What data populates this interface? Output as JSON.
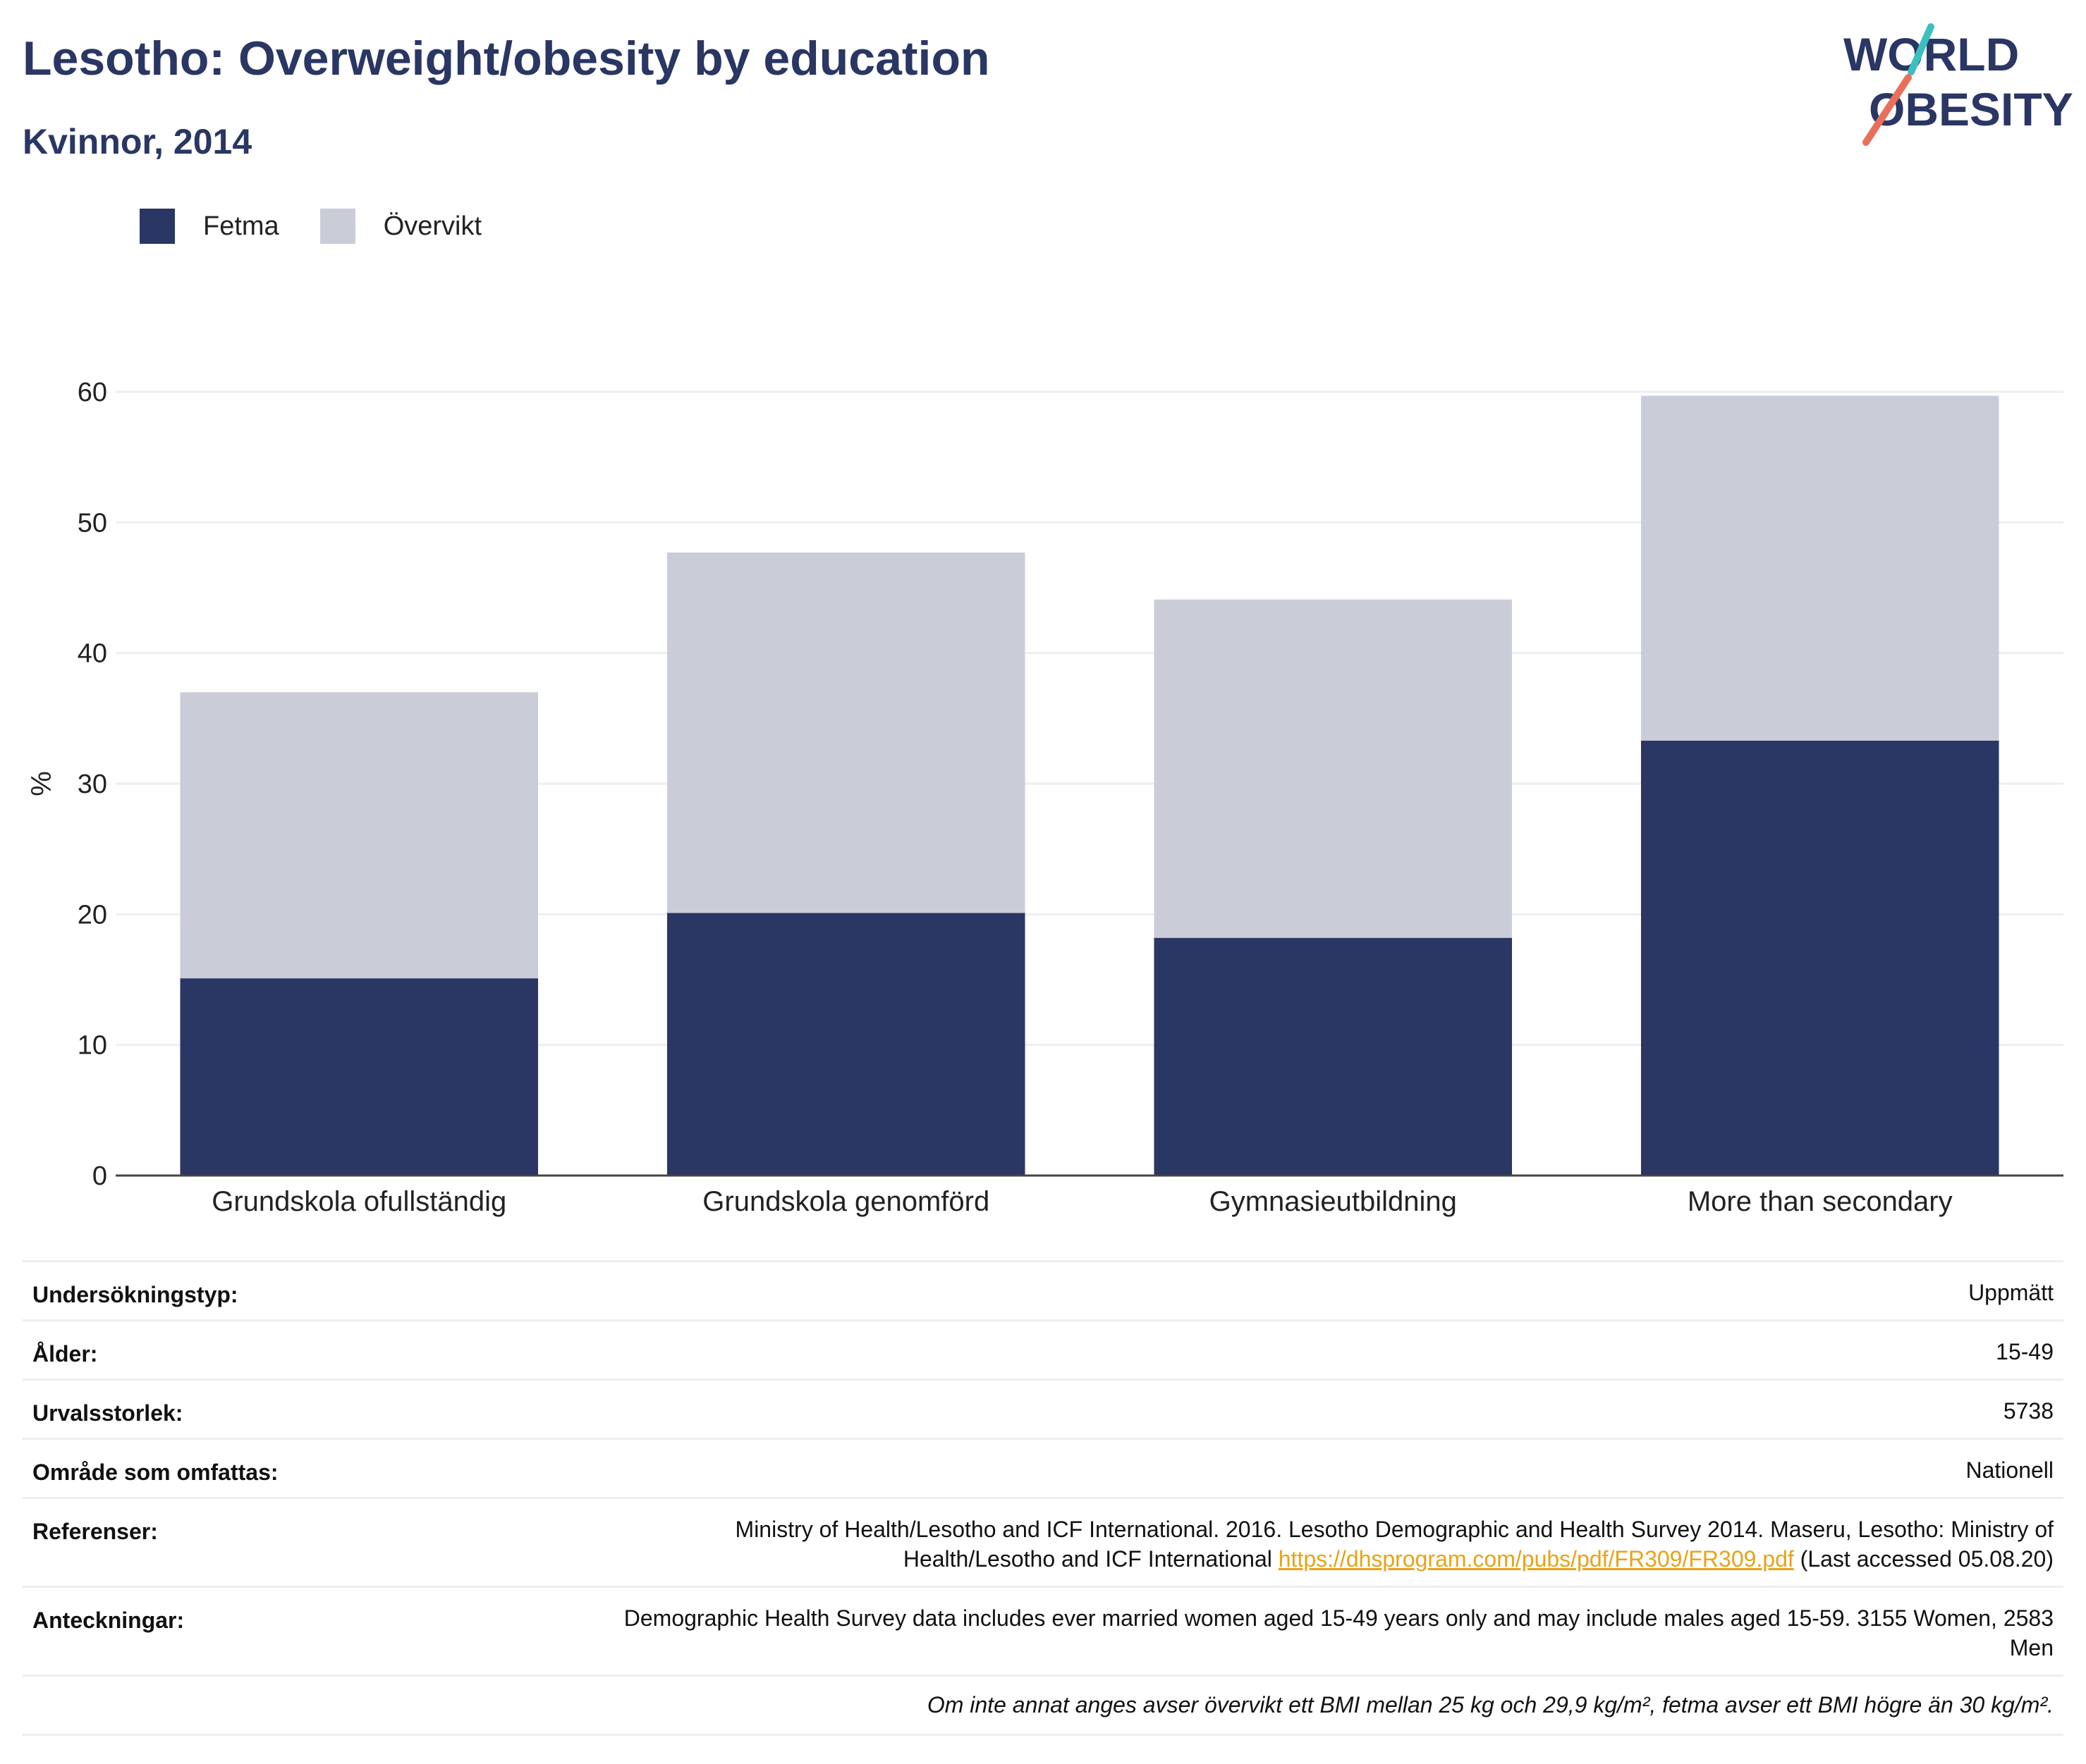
{
  "header": {
    "title": "Lesotho: Overweight/obesity by education",
    "subtitle": "Kvinnor, 2014",
    "logo_line1": "WORLD",
    "logo_line2": "OBESITY"
  },
  "legend": [
    {
      "label": "Fetma",
      "color": "#2a3663"
    },
    {
      "label": "Övervikt",
      "color": "#cacdd8"
    }
  ],
  "chart_data": {
    "type": "bar",
    "stacked": true,
    "categories": [
      "Grundskola ofullständig",
      "Grundskola genomförd",
      "Gymnasieutbildning",
      "More than secondary"
    ],
    "series": [
      {
        "name": "Fetma",
        "color": "#2a3663",
        "values": [
          15.1,
          20.1,
          18.2,
          33.3
        ]
      },
      {
        "name": "Övervikt",
        "color": "#cacdd8",
        "values": [
          21.9,
          27.6,
          25.9,
          26.4
        ]
      }
    ],
    "ylabel": "%",
    "ylim": [
      0,
      60
    ],
    "yticks": [
      0,
      10,
      20,
      30,
      40,
      50,
      60
    ],
    "grid": true,
    "legend_position": "top-left"
  },
  "info": {
    "rows": [
      {
        "label": "Undersökningstyp:",
        "value": "Uppmätt"
      },
      {
        "label": "Ålder:",
        "value": "15-49"
      },
      {
        "label": "Urvalsstorlek:",
        "value": "5738"
      },
      {
        "label": "Område som omfattas:",
        "value": "Nationell"
      }
    ],
    "references_label": "Referenser:",
    "references_text": "Ministry of Health/Lesotho and ICF International. 2016. Lesotho Demographic and Health Survey 2014. Maseru, Lesotho: Ministry of Health/Lesotho and ICF International",
    "references_link": "https://dhsprogram.com/pubs/pdf/FR309/FR309.pdf",
    "references_suffix": "(Last accessed 05.08.20)",
    "notes_label": "Anteckningar:",
    "notes_text": "Demographic Health Survey data includes ever married women aged 15-49 years only and may include males aged 15-59. 3155 Women, 2583 Men",
    "footnote": "Om inte annat anges avser övervikt ett BMI mellan 25 kg och 29,9 kg/m², fetma avser ett BMI högre än 30 kg/m²."
  }
}
